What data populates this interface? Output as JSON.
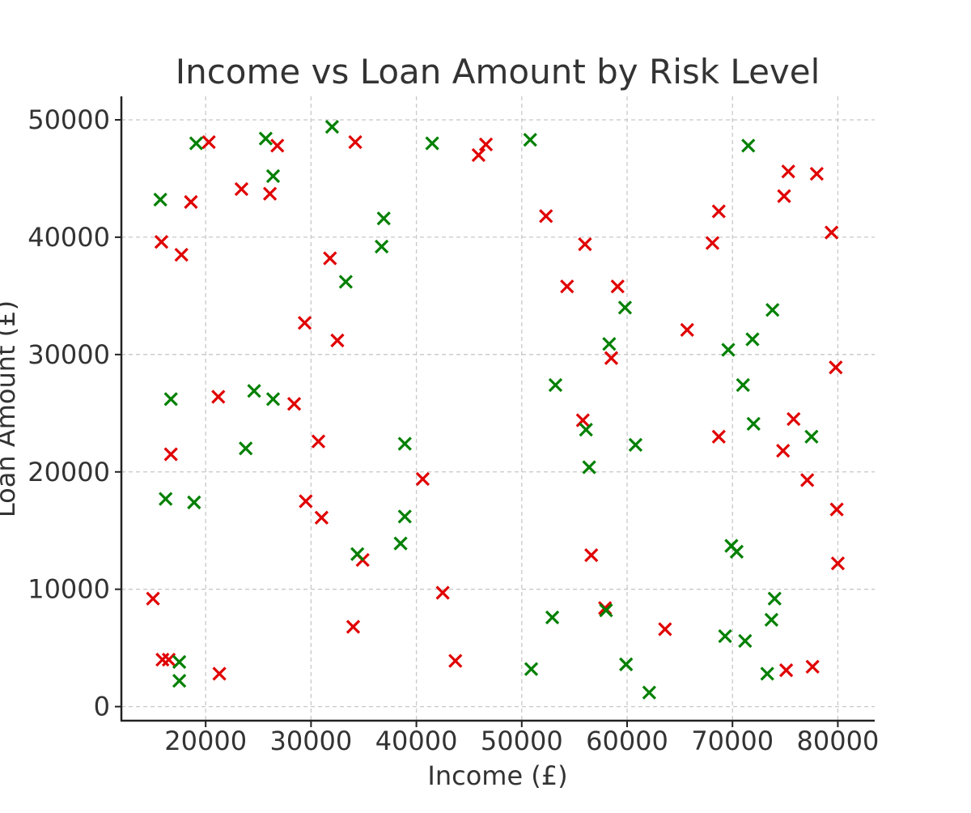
{
  "chart_data": {
    "type": "scatter",
    "title": "Income vs Loan Amount by Risk Level",
    "xlabel": "Income (£)",
    "ylabel": "Loan Amount (£)",
    "xlim": [
      12000,
      83500
    ],
    "ylim": [
      -1200,
      52000
    ],
    "xticks": [
      20000,
      30000,
      40000,
      50000,
      60000,
      70000,
      80000
    ],
    "yticks": [
      0,
      10000,
      20000,
      30000,
      40000,
      50000
    ],
    "grid": true,
    "legend": "none",
    "marker": "x",
    "series": [
      {
        "color": "#e00000",
        "points": [
          [
            20300,
            48100
          ],
          [
            26800,
            47800
          ],
          [
            34200,
            48100
          ],
          [
            45900,
            47000
          ],
          [
            46600,
            47900
          ],
          [
            18600,
            43000
          ],
          [
            23400,
            44100
          ],
          [
            26100,
            43700
          ],
          [
            15800,
            39600
          ],
          [
            17700,
            38500
          ],
          [
            31800,
            38200
          ],
          [
            29400,
            32700
          ],
          [
            32500,
            31200
          ],
          [
            21200,
            26400
          ],
          [
            28400,
            25800
          ],
          [
            30700,
            22600
          ],
          [
            16700,
            21500
          ],
          [
            29500,
            17500
          ],
          [
            31000,
            16100
          ],
          [
            34900,
            12500
          ],
          [
            40600,
            19400
          ],
          [
            42500,
            9700
          ],
          [
            34000,
            6800
          ],
          [
            43700,
            3900
          ],
          [
            21300,
            2800
          ],
          [
            15000,
            9200
          ],
          [
            15900,
            4000
          ],
          [
            16500,
            4000
          ],
          [
            52300,
            41800
          ],
          [
            56000,
            39400
          ],
          [
            54300,
            35800
          ],
          [
            59100,
            35800
          ],
          [
            58500,
            29700
          ],
          [
            55800,
            24400
          ],
          [
            56600,
            12900
          ],
          [
            57900,
            8400
          ],
          [
            63600,
            6600
          ],
          [
            65700,
            32100
          ],
          [
            68100,
            39500
          ],
          [
            68700,
            42200
          ],
          [
            68700,
            23000
          ],
          [
            74900,
            43500
          ],
          [
            75300,
            45600
          ],
          [
            78000,
            45400
          ],
          [
            79400,
            40400
          ],
          [
            79800,
            28900
          ],
          [
            75800,
            24500
          ],
          [
            74800,
            21800
          ],
          [
            77100,
            19300
          ],
          [
            79900,
            16800
          ],
          [
            80000,
            12200
          ],
          [
            75100,
            3100
          ],
          [
            77600,
            3400
          ]
        ]
      },
      {
        "color": "#008000",
        "points": [
          [
            19100,
            48000
          ],
          [
            25700,
            48400
          ],
          [
            32000,
            49400
          ],
          [
            41500,
            48000
          ],
          [
            50800,
            48300
          ],
          [
            71500,
            47800
          ],
          [
            15700,
            43200
          ],
          [
            26400,
            45200
          ],
          [
            36900,
            41600
          ],
          [
            36700,
            39200
          ],
          [
            33300,
            36200
          ],
          [
            16700,
            26200
          ],
          [
            24600,
            26900
          ],
          [
            26400,
            26200
          ],
          [
            23800,
            22000
          ],
          [
            16200,
            17700
          ],
          [
            18900,
            17400
          ],
          [
            38900,
            22400
          ],
          [
            38900,
            16200
          ],
          [
            38500,
            13900
          ],
          [
            34400,
            13000
          ],
          [
            17500,
            3800
          ],
          [
            17500,
            2200
          ],
          [
            53200,
            27400
          ],
          [
            56100,
            23600
          ],
          [
            56400,
            20400
          ],
          [
            58300,
            30900
          ],
          [
            59800,
            34000
          ],
          [
            60800,
            22300
          ],
          [
            52900,
            7600
          ],
          [
            50900,
            3200
          ],
          [
            58000,
            8200
          ],
          [
            59900,
            3600
          ],
          [
            62100,
            1200
          ],
          [
            69600,
            30400
          ],
          [
            71900,
            31300
          ],
          [
            73800,
            33800
          ],
          [
            71000,
            27400
          ],
          [
            72000,
            24100
          ],
          [
            77500,
            23000
          ],
          [
            69900,
            13700
          ],
          [
            70400,
            13200
          ],
          [
            69300,
            6000
          ],
          [
            71200,
            5600
          ],
          [
            74000,
            9200
          ],
          [
            73700,
            7400
          ],
          [
            73300,
            2800
          ]
        ]
      }
    ]
  }
}
